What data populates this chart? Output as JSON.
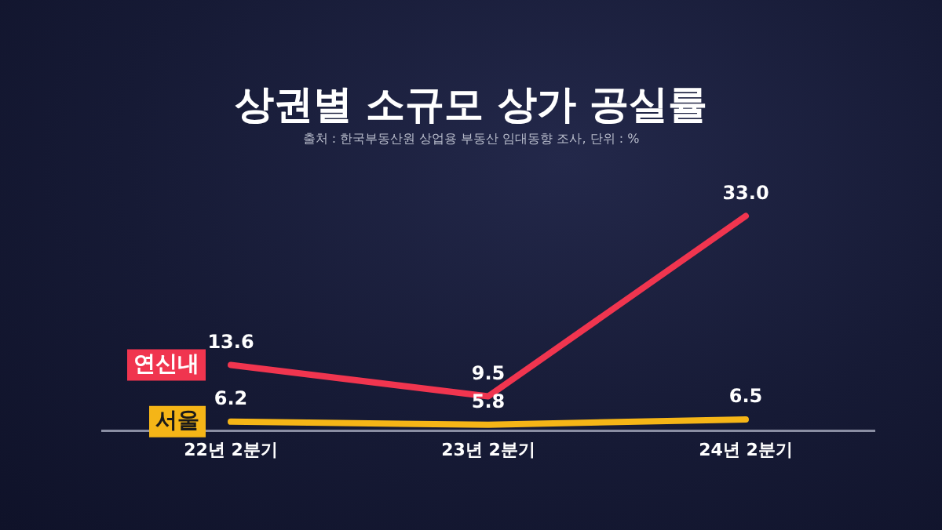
{
  "chart_data": {
    "type": "line",
    "title": "상권별 소규모 상가 공실률",
    "subtitle": "출처 : 한국부동산원 상업용 부동산 임대동향 조사, 단위 : %",
    "categories": [
      "22년 2분기",
      "23년 2분기",
      "24년 2분기"
    ],
    "series": [
      {
        "name": "연신내",
        "color": "#f0354f",
        "values": [
          13.6,
          9.5,
          33.0
        ],
        "value_labels": [
          "13.6",
          "9.5",
          "33.0"
        ]
      },
      {
        "name": "서울",
        "color": "#f5b517",
        "values": [
          6.2,
          5.8,
          6.5
        ],
        "value_labels": [
          "6.2",
          "5.8",
          "6.5"
        ]
      }
    ],
    "grid": false,
    "legend": "left",
    "marker": "none",
    "line_style": "solid"
  }
}
